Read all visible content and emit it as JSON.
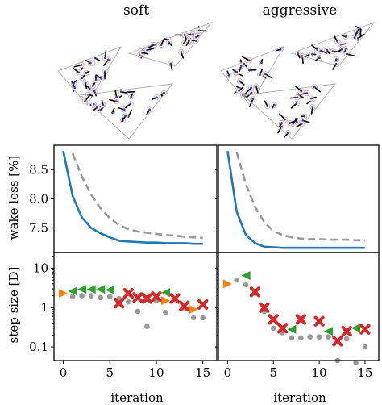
{
  "figure": {
    "columns": [
      "soft",
      "aggressive"
    ],
    "xlabel": "iteration",
    "wake_ylabel": "wake loss [%]",
    "step_ylabel": "step size [D]"
  },
  "chart_data": [
    {
      "panel": "wake-loss-soft",
      "type": "line",
      "xlabel": "",
      "ylabel": "wake loss [%]",
      "xlim": [
        -1,
        16.5
      ],
      "ylim": [
        7.08,
        8.92
      ],
      "yticks": [
        7.5,
        8.0,
        8.5
      ],
      "ytick_labels": [
        "7.5",
        "8.0",
        "8.5"
      ],
      "series": [
        {
          "style": "solid",
          "color": "#1f77b4",
          "x": [
            0,
            1,
            2,
            3,
            4,
            5,
            6,
            7,
            8,
            9,
            10,
            11,
            12,
            13,
            14,
            15
          ],
          "y": [
            8.82,
            8.05,
            7.68,
            7.5,
            7.41,
            7.34,
            7.28,
            7.27,
            7.26,
            7.25,
            7.25,
            7.24,
            7.24,
            7.24,
            7.23,
            7.23
          ]
        },
        {
          "style": "dashed",
          "color": "#999999",
          "x": [
            1,
            2,
            3,
            4,
            5,
            6,
            7,
            8,
            9,
            10,
            11,
            12,
            13,
            14,
            15
          ],
          "y": [
            8.78,
            8.38,
            8.07,
            7.84,
            7.67,
            7.55,
            7.48,
            7.44,
            7.42,
            7.4,
            7.38,
            7.37,
            7.35,
            7.34,
            7.33
          ]
        }
      ]
    },
    {
      "panel": "wake-loss-aggressive",
      "type": "line",
      "xlabel": "",
      "ylabel": "",
      "xlim": [
        -1,
        16.5
      ],
      "ylim": [
        7.08,
        8.92
      ],
      "series": [
        {
          "style": "solid",
          "color": "#1f77b4",
          "x": [
            0,
            1,
            2,
            3,
            4,
            5,
            6,
            7,
            8,
            9,
            10,
            11,
            12,
            13,
            14,
            15
          ],
          "y": [
            8.82,
            7.78,
            7.38,
            7.24,
            7.18,
            7.17,
            7.16,
            7.16,
            7.16,
            7.16,
            7.16,
            7.16,
            7.16,
            7.16,
            7.16,
            7.16
          ]
        },
        {
          "style": "dashed",
          "color": "#999999",
          "x": [
            1,
            2,
            3,
            4,
            5,
            6,
            7,
            8,
            9,
            10,
            11,
            12,
            13,
            14,
            15
          ],
          "y": [
            8.8,
            8.25,
            7.86,
            7.6,
            7.45,
            7.38,
            7.34,
            7.32,
            7.31,
            7.31,
            7.3,
            7.3,
            7.3,
            7.29,
            7.29
          ]
        }
      ]
    },
    {
      "panel": "step-size-soft",
      "type": "scatter",
      "xlabel": "iteration",
      "ylabel": "step size [D]",
      "yscale": "log",
      "xlim": [
        -1,
        16.5
      ],
      "ylim": [
        0.045,
        25
      ],
      "xticks": [
        0,
        5,
        10,
        15
      ],
      "xtick_labels": [
        "0",
        "5",
        "10",
        "15"
      ],
      "yticks": [
        0.1,
        1,
        10
      ],
      "ytick_labels": [
        "0.1",
        "1",
        "10"
      ],
      "series": [
        {
          "marker": "circle",
          "color": "#999999",
          "x": [
            1,
            2,
            3,
            4,
            5,
            6,
            7,
            8,
            9,
            10,
            11,
            12,
            13,
            14,
            15
          ],
          "y": [
            1.9,
            2.0,
            2.0,
            1.8,
            1.9,
            1.7,
            1.4,
            0.8,
            0.33,
            1.5,
            0.75,
            1.6,
            0.95,
            0.55,
            0.55
          ]
        },
        {
          "marker": "triangle-right",
          "color": "#ff7f0e",
          "x": [
            0,
            11,
            14
          ],
          "y": [
            2.3,
            1.5,
            0.9
          ]
        },
        {
          "marker": "triangle-left",
          "color": "#2ca02c",
          "x": [
            1,
            2,
            3,
            4,
            5,
            11
          ],
          "y": [
            2.6,
            2.9,
            2.9,
            2.9,
            2.8,
            2.4
          ]
        },
        {
          "marker": "x",
          "color": "#d62728",
          "x": [
            6,
            7,
            8,
            9,
            10,
            12,
            13,
            15
          ],
          "y": [
            1.3,
            2.3,
            1.8,
            1.7,
            1.9,
            1.7,
            1.1,
            1.2
          ]
        }
      ]
    },
    {
      "panel": "step-size-aggressive",
      "type": "scatter",
      "xlabel": "iteration",
      "ylabel": "",
      "yscale": "log",
      "xlim": [
        -1,
        16.5
      ],
      "ylim": [
        0.045,
        25
      ],
      "series": [
        {
          "marker": "circle",
          "color": "#999999",
          "x": [
            1,
            2,
            3,
            4,
            5,
            6,
            7,
            8,
            9,
            10,
            11,
            12,
            13,
            14,
            15
          ],
          "y": [
            5.0,
            3.8,
            2.3,
            0.8,
            0.3,
            0.23,
            0.17,
            0.17,
            0.18,
            0.18,
            0.18,
            0.045,
            0.16,
            0.04,
            0.1
          ]
        },
        {
          "marker": "triangle-right",
          "color": "#ff7f0e",
          "x": [
            0
          ],
          "y": [
            4.0
          ]
        },
        {
          "marker": "triangle-left",
          "color": "#2ca02c",
          "x": [
            2,
            7,
            11,
            14
          ],
          "y": [
            6.5,
            0.28,
            0.25,
            0.3
          ]
        },
        {
          "marker": "x",
          "color": "#d62728",
          "x": [
            3,
            4,
            5,
            6,
            8,
            10,
            12,
            13,
            15
          ],
          "y": [
            2.5,
            1.0,
            0.5,
            0.3,
            0.5,
            0.45,
            0.14,
            0.25,
            0.28
          ]
        }
      ]
    }
  ]
}
